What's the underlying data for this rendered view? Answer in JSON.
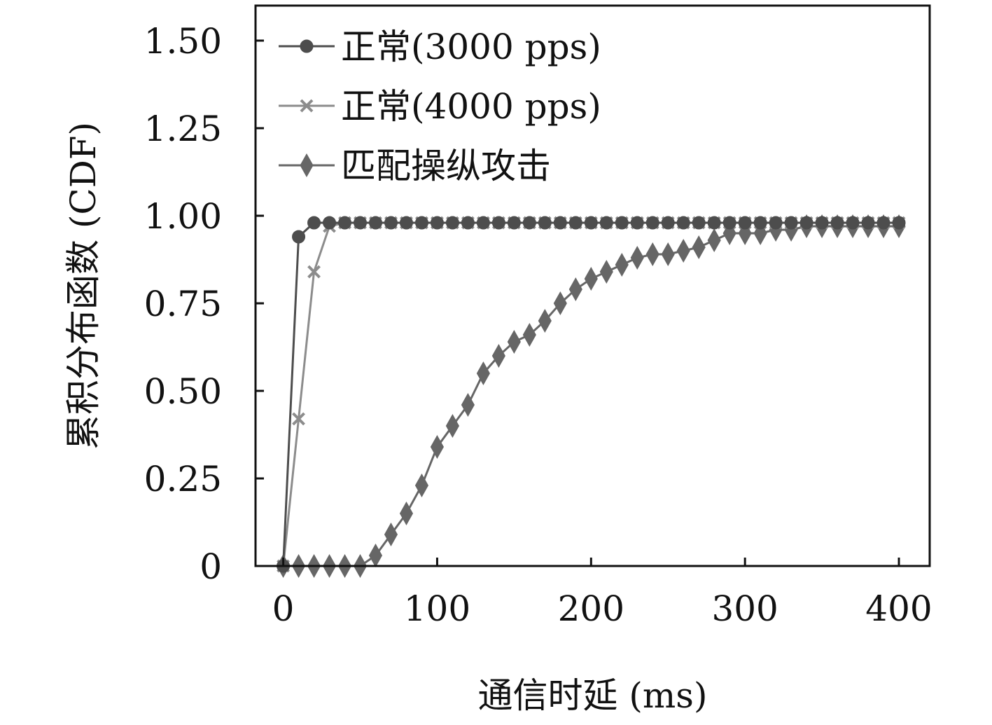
{
  "chart_data": {
    "type": "line",
    "title": "",
    "xlabel": "通信时延 (ms)",
    "ylabel": "累积分布函数 (CDF)",
    "xlim": [
      -18,
      420
    ],
    "ylim": [
      0,
      1.6
    ],
    "xticks": [
      0,
      100,
      200,
      300,
      400
    ],
    "xtick_labels": [
      "0",
      "100",
      "200",
      "300",
      "400"
    ],
    "yticks": [
      0,
      0.25,
      0.5,
      0.75,
      1.0,
      1.25,
      1.5
    ],
    "ytick_labels": [
      "0",
      "0.25",
      "0.50",
      "0.75",
      "1.00",
      "1.25",
      "1.50"
    ],
    "grid": false,
    "legend_position": "top-left",
    "series": [
      {
        "name": "正常(3000 pps)",
        "color": "#4d4d4d",
        "marker": "circle",
        "x": [
          0,
          10,
          20,
          30,
          40,
          50,
          60,
          70,
          80,
          90,
          100,
          110,
          120,
          130,
          140,
          150,
          160,
          170,
          180,
          190,
          200,
          210,
          220,
          230,
          240,
          250,
          260,
          270,
          280,
          290,
          300,
          310,
          320,
          330,
          340,
          350,
          360,
          370,
          380,
          390,
          400
        ],
        "y": [
          0,
          0.94,
          0.98,
          0.98,
          0.98,
          0.98,
          0.98,
          0.98,
          0.98,
          0.98,
          0.98,
          0.98,
          0.98,
          0.98,
          0.98,
          0.98,
          0.98,
          0.98,
          0.98,
          0.98,
          0.98,
          0.98,
          0.98,
          0.98,
          0.98,
          0.98,
          0.98,
          0.98,
          0.98,
          0.98,
          0.98,
          0.98,
          0.98,
          0.98,
          0.98,
          0.98,
          0.98,
          0.98,
          0.98,
          0.98,
          0.98
        ]
      },
      {
        "name": "正常(4000 pps)",
        "color": "#8c8c8c",
        "marker": "x",
        "x": [
          0,
          10,
          20,
          30,
          40,
          50,
          60,
          70,
          80,
          90,
          100,
          110,
          120,
          130,
          140,
          150,
          160,
          170,
          180,
          190,
          200,
          210,
          220,
          230,
          240,
          250,
          260,
          270,
          280,
          290,
          300,
          310,
          320,
          330,
          340,
          350,
          360,
          370,
          380,
          390,
          400
        ],
        "y": [
          0,
          0.42,
          0.84,
          0.97,
          0.98,
          0.98,
          0.98,
          0.98,
          0.98,
          0.98,
          0.98,
          0.98,
          0.98,
          0.98,
          0.98,
          0.98,
          0.98,
          0.98,
          0.98,
          0.98,
          0.98,
          0.98,
          0.98,
          0.98,
          0.98,
          0.98,
          0.98,
          0.98,
          0.98,
          0.98,
          0.98,
          0.98,
          0.98,
          0.98,
          0.98,
          0.98,
          0.98,
          0.98,
          0.98,
          0.98,
          0.98
        ]
      },
      {
        "name": "匹配操纵攻击",
        "color": "#666666",
        "marker": "diamond",
        "x": [
          0,
          10,
          20,
          30,
          40,
          50,
          60,
          70,
          80,
          90,
          100,
          110,
          120,
          130,
          140,
          150,
          160,
          170,
          180,
          190,
          200,
          210,
          220,
          230,
          240,
          250,
          260,
          270,
          280,
          290,
          300,
          310,
          320,
          330,
          340,
          350,
          360,
          370,
          380,
          390,
          400
        ],
        "y": [
          0,
          0,
          0,
          0,
          0,
          0,
          0.03,
          0.09,
          0.15,
          0.23,
          0.34,
          0.4,
          0.46,
          0.55,
          0.6,
          0.64,
          0.66,
          0.7,
          0.75,
          0.79,
          0.82,
          0.84,
          0.86,
          0.88,
          0.89,
          0.89,
          0.9,
          0.91,
          0.93,
          0.95,
          0.95,
          0.95,
          0.96,
          0.96,
          0.97,
          0.97,
          0.97,
          0.97,
          0.97,
          0.97,
          0.97
        ]
      }
    ]
  }
}
